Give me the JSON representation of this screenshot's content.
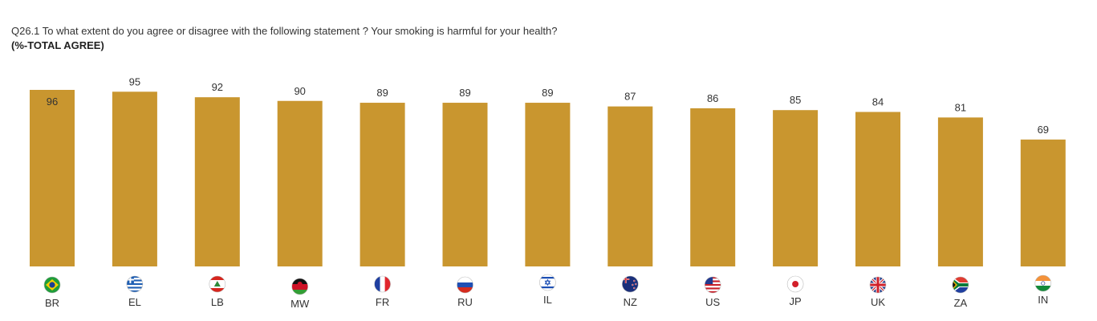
{
  "header": {
    "title": "Q26.1 To what extent do you agree or disagree with the following statement ? Your smoking is harmful for your health?",
    "subtitle": "(%-TOTAL AGREE)"
  },
  "chart_data": {
    "type": "bar",
    "categories": [
      "BR",
      "EL",
      "LB",
      "MW",
      "FR",
      "RU",
      "IL",
      "NZ",
      "US",
      "JP",
      "UK",
      "ZA",
      "IN"
    ],
    "values": [
      96,
      95,
      92,
      90,
      89,
      89,
      89,
      87,
      86,
      85,
      84,
      81,
      69
    ],
    "flag_icons": [
      "brazil-flag-icon",
      "greece-flag-icon",
      "lebanon-flag-icon",
      "malawi-flag-icon",
      "france-flag-icon",
      "russia-flag-icon",
      "israel-flag-icon",
      "new-zealand-flag-icon",
      "usa-flag-icon",
      "japan-flag-icon",
      "uk-flag-icon",
      "south-africa-flag-icon",
      "india-flag-icon"
    ],
    "bar_color": "#C9962F",
    "ylim": [
      0,
      100
    ],
    "grid": false,
    "legend": "none",
    "xlabel": "",
    "ylabel": ""
  }
}
